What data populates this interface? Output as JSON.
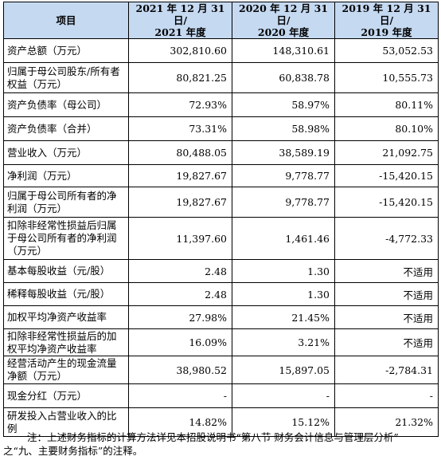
{
  "table": {
    "headers": [
      {
        "line1": "项目",
        "line2": ""
      },
      {
        "line1": "2021 年 12 月 31 日/",
        "line2": "2021 年度"
      },
      {
        "line1": "2020 年 12 月 31 日/",
        "line2": "2020 年度"
      },
      {
        "line1": "2019 年 12 月 31 日/",
        "line2": "2019 年度"
      }
    ],
    "rows": [
      {
        "label": "资产总额（万元）",
        "v2021": "302,810.60",
        "v2020": "148,310.61",
        "v2019": "53,052.53"
      },
      {
        "label": "归属于母公司股东/所有者权益（万元）",
        "v2021": "80,821.25",
        "v2020": "60,838.78",
        "v2019": "10,555.73"
      },
      {
        "label": "资产负债率（母公司）",
        "v2021": "72.93%",
        "v2020": "58.97%",
        "v2019": "80.11%"
      },
      {
        "label": "资产负债率（合并）",
        "v2021": "73.31%",
        "v2020": "58.98%",
        "v2019": "80.10%"
      },
      {
        "label": "营业收入（万元）",
        "v2021": "80,488.05",
        "v2020": "38,589.19",
        "v2019": "21,092.75"
      },
      {
        "label": "净利润（万元）",
        "v2021": "19,827.67",
        "v2020": "9,778.77",
        "v2019": "-15,420.15"
      },
      {
        "label": "归属于母公司所有者的净利润（万元）",
        "v2021": "19,827.67",
        "v2020": "9,778.77",
        "v2019": "-15,420.15"
      },
      {
        "label": "扣除非经常性损益后归属于母公司所有者的净利润（万元）",
        "v2021": "11,397.60",
        "v2020": "1,461.46",
        "v2019": "-4,772.33"
      },
      {
        "label": "基本每股收益（元/股）",
        "v2021": "2.48",
        "v2020": "1.30",
        "v2019": "不适用"
      },
      {
        "label": "稀释每股收益（元/股）",
        "v2021": "2.48",
        "v2020": "1.30",
        "v2019": "不适用"
      },
      {
        "label": "加权平均净资产收益率",
        "v2021": "27.98%",
        "v2020": "21.45%",
        "v2019": "不适用"
      },
      {
        "label": "扣除非经常性损益后的加权平均净资产收益率",
        "v2021": "16.09%",
        "v2020": "3.21%",
        "v2019": "不适用"
      },
      {
        "label": "经营活动产生的现金流量净额（万元）",
        "v2021": "38,980.52",
        "v2020": "15,897.05",
        "v2019": "-2,784.31"
      },
      {
        "label": "现金分红（万元）",
        "v2021": "-",
        "v2020": "-",
        "v2019": "-"
      },
      {
        "label": "研发投入占营业收入的比例",
        "v2021": "14.82%",
        "v2020": "15.12%",
        "v2019": "21.32%"
      }
    ]
  },
  "note": {
    "line1": "注：上述财务指标的计算方法详见本招股说明书“第八节 财务会计信息与管理层分析”",
    "line2": "之“九、主要财务指标”的注释。"
  }
}
